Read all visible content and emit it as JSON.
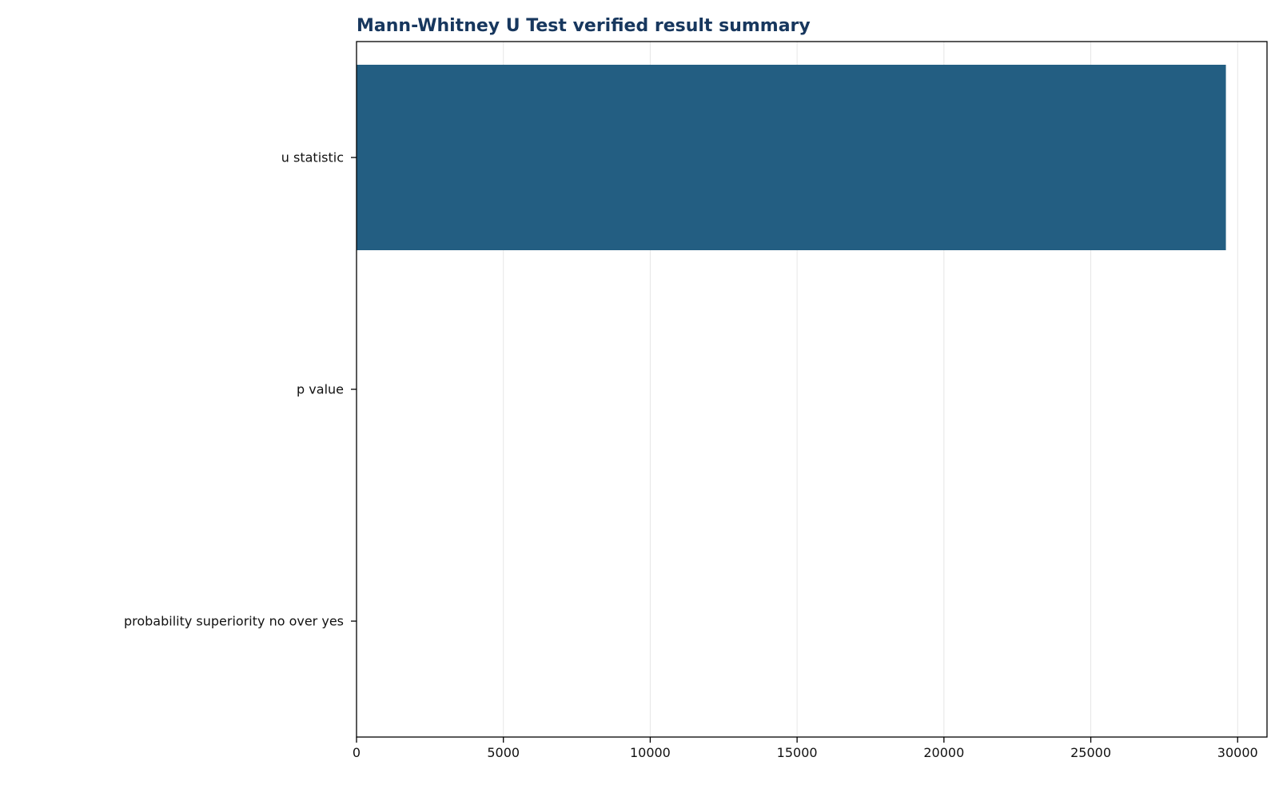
{
  "chart_data": {
    "type": "bar",
    "orientation": "horizontal",
    "title": "Mann-Whitney U Test verified result summary",
    "xlabel": "",
    "ylabel": "",
    "categories": [
      "u statistic",
      "p value",
      "probability superiority no over yes"
    ],
    "values": [
      29600,
      0.0,
      0.5
    ],
    "xlim": [
      0,
      31000
    ],
    "xticks": [
      0,
      5000,
      10000,
      15000,
      20000,
      25000,
      30000
    ],
    "xtick_labels": [
      "0",
      "5000",
      "10000",
      "15000",
      "20000",
      "25000",
      "30000"
    ],
    "grid": "x-axis vertical gridlines",
    "legend": "none"
  },
  "colors": {
    "bar": "#1f5b80",
    "title": "#17375e",
    "grid": "#e6e6e6",
    "axis": "#000000"
  }
}
